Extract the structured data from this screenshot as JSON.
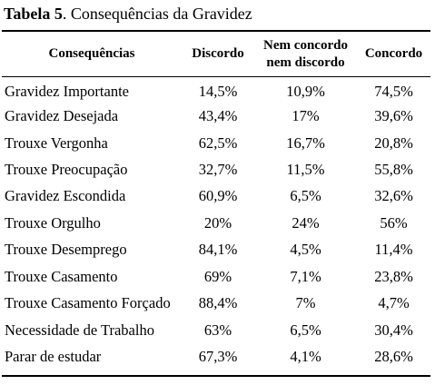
{
  "caption": {
    "label": "Tabela 5",
    "text": ". Consequências da Gravidez"
  },
  "table": {
    "headers": [
      "Consequências",
      "Discordo",
      "Nem concordo nem discordo",
      "Concordo"
    ],
    "rows": [
      {
        "name": "Gravidez Importante",
        "discordo": "14,5%",
        "neutro": "10,9%",
        "concordo": "74,5%"
      },
      {
        "name": "Gravidez Desejada",
        "discordo": "43,4%",
        "neutro": "17%",
        "concordo": "39,6%"
      },
      {
        "name": "Trouxe Vergonha",
        "discordo": "62,5%",
        "neutro": "16,7%",
        "concordo": "20,8%"
      },
      {
        "name": "Trouxe Preocupação",
        "discordo": "32,7%",
        "neutro": "11,5%",
        "concordo": "55,8%"
      },
      {
        "name": "Gravidez Escondida",
        "discordo": "60,9%",
        "neutro": "6,5%",
        "concordo": "32,6%"
      },
      {
        "name": "Trouxe Orgulho",
        "discordo": "20%",
        "neutro": "24%",
        "concordo": "56%"
      },
      {
        "name": "Trouxe Desemprego",
        "discordo": "84,1%",
        "neutro": "4,5%",
        "concordo": "11,4%"
      },
      {
        "name": "Trouxe Casamento",
        "discordo": "69%",
        "neutro": "7,1%",
        "concordo": "23,8%"
      },
      {
        "name": "Trouxe Casamento Forçado",
        "discordo": "88,4%",
        "neutro": "7%",
        "concordo": "4,7%"
      },
      {
        "name": "Necessidade de Trabalho",
        "discordo": "63%",
        "neutro": "6,5%",
        "concordo": "30,4%"
      },
      {
        "name": "Parar de estudar",
        "discordo": "67,3%",
        "neutro": "4,1%",
        "concordo": "28,6%"
      }
    ]
  }
}
